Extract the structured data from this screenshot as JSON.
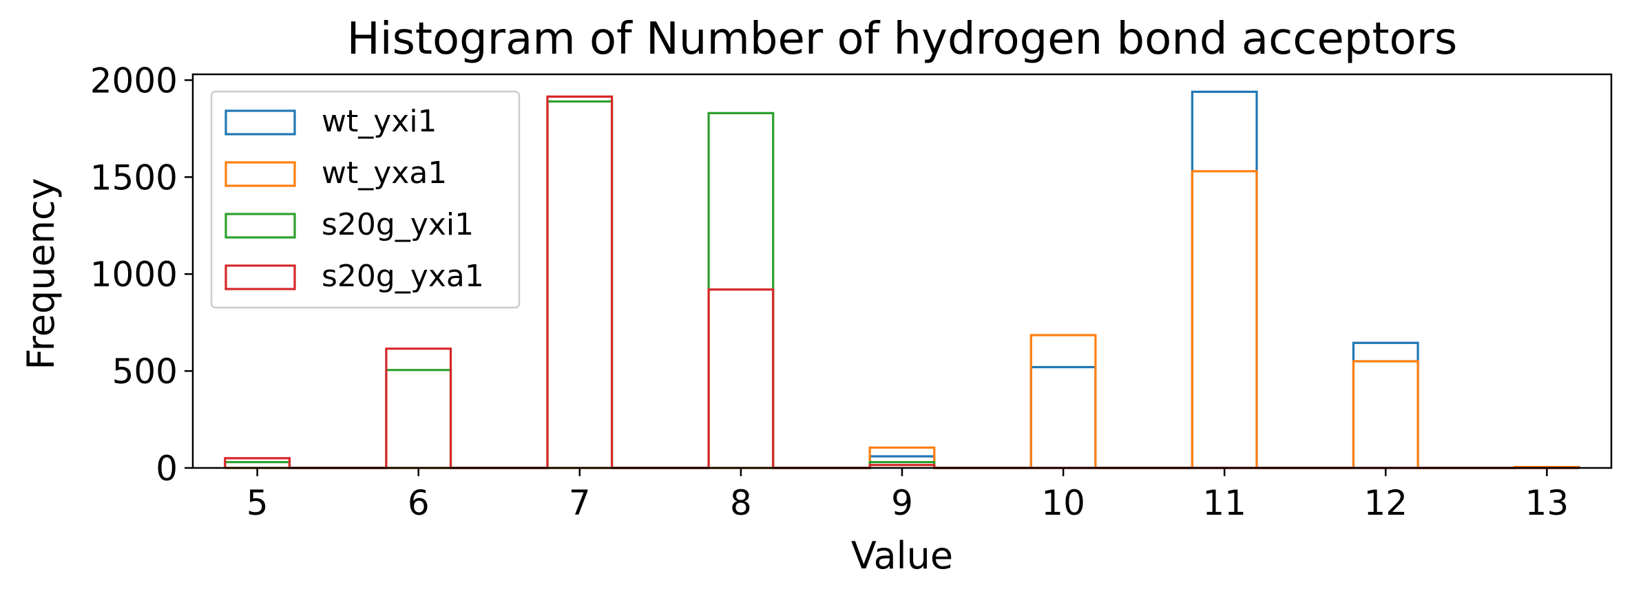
{
  "chart_data": {
    "type": "bar",
    "histtype": "step",
    "title": "Histogram of Number of hydrogen bond acceptors",
    "xlabel": "Value",
    "ylabel": "Frequency",
    "xlim": [
      4.6,
      13.4
    ],
    "ylim": [
      0,
      2030
    ],
    "bin_width": 0.4,
    "xticks": [
      "5",
      "6",
      "7",
      "8",
      "9",
      "10",
      "11",
      "12",
      "13"
    ],
    "yticks": [
      "0",
      "500",
      "1000",
      "1500",
      "2000"
    ],
    "legend_position": "upper-left",
    "grid": false,
    "series": [
      {
        "name": "wt_yxi1",
        "color": "#1f77b4",
        "x": [
          5,
          6,
          7,
          8,
          9,
          10,
          11,
          12,
          13
        ],
        "values": [
          0,
          0,
          0,
          0,
          60,
          520,
          1940,
          645,
          5
        ]
      },
      {
        "name": "wt_yxa1",
        "color": "#ff7f0e",
        "x": [
          5,
          6,
          7,
          8,
          9,
          10,
          11,
          12,
          13
        ],
        "values": [
          0,
          0,
          0,
          0,
          105,
          685,
          1530,
          550,
          5
        ]
      },
      {
        "name": "s20g_yxi1",
        "color": "#2ca02c",
        "x": [
          5,
          6,
          7,
          8,
          9,
          10,
          11,
          12,
          13
        ],
        "values": [
          30,
          505,
          1890,
          1830,
          30,
          0,
          0,
          0,
          0
        ]
      },
      {
        "name": "s20g_yxa1",
        "color": "#d62728",
        "x": [
          5,
          6,
          7,
          8,
          9,
          10,
          11,
          12,
          13
        ],
        "values": [
          50,
          615,
          1915,
          920,
          15,
          0,
          0,
          0,
          0
        ]
      }
    ]
  }
}
